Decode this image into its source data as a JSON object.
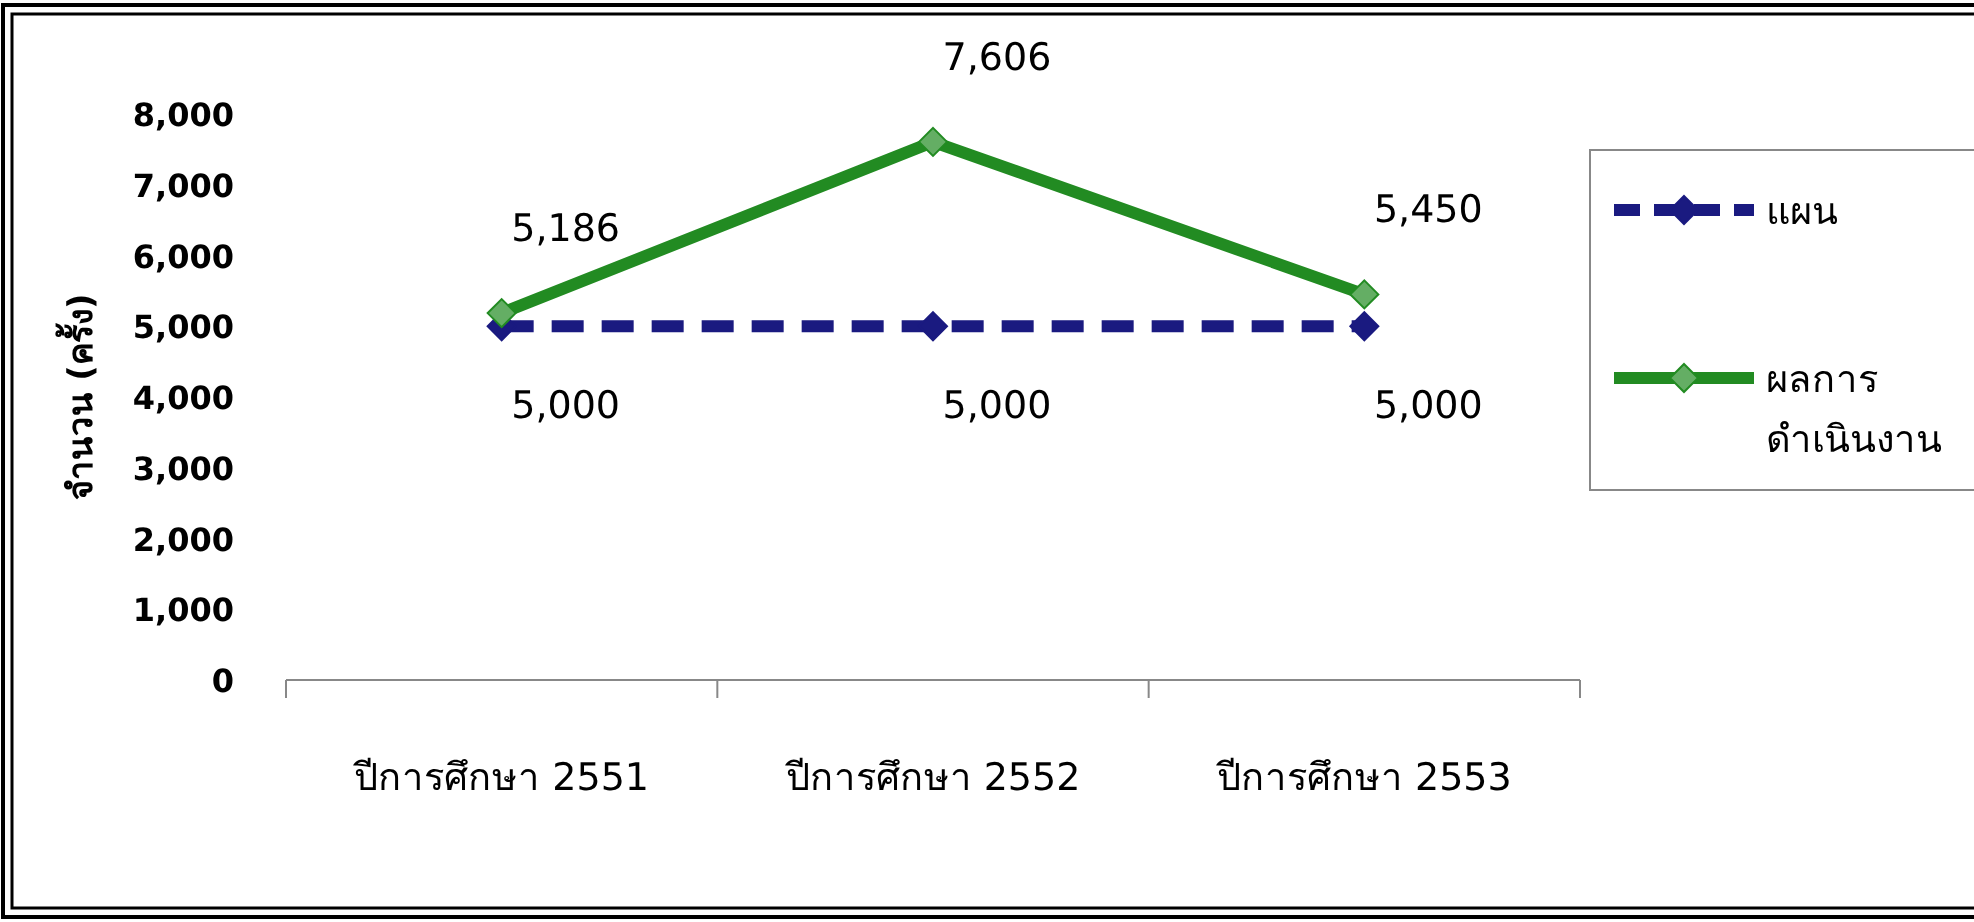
{
  "chart_data": {
    "type": "line",
    "ylabel": "จำนวน (ครั้ง)",
    "categories": [
      "ปีการศึกษา 2551",
      "ปีการศึกษา 2552",
      "ปีการศึกษา 2553"
    ],
    "series": [
      {
        "name": "แผน",
        "color": "#1a1a80",
        "values": [
          5000,
          5000,
          5000
        ],
        "value_labels": [
          "5,000",
          "5,000",
          "5,000"
        ],
        "line_style": "dashed",
        "marker": "diamond"
      },
      {
        "name": "ผลการดำเนินงาน",
        "color": "#228b22",
        "values": [
          5186,
          7606,
          5450
        ],
        "value_labels": [
          "5,186",
          "7,606",
          "5,450"
        ],
        "line_style": "solid",
        "marker": "diamond"
      }
    ],
    "ylim": [
      0,
      8000
    ],
    "yticks": [
      0,
      {
        "value": 1000,
        "label": "1,000"
      },
      {
        "value": 2000,
        "label": "2,000"
      },
      {
        "value": 3000,
        "label": "3,000"
      },
      {
        "value": 4000,
        "label": "4,000"
      },
      {
        "value": 5000,
        "label": "5,000"
      },
      {
        "value": 6000,
        "label": "6,000"
      },
      {
        "value": 7000,
        "label": "7,000"
      },
      {
        "value": 8000,
        "label": "8,000"
      }
    ],
    "legend": "right"
  }
}
